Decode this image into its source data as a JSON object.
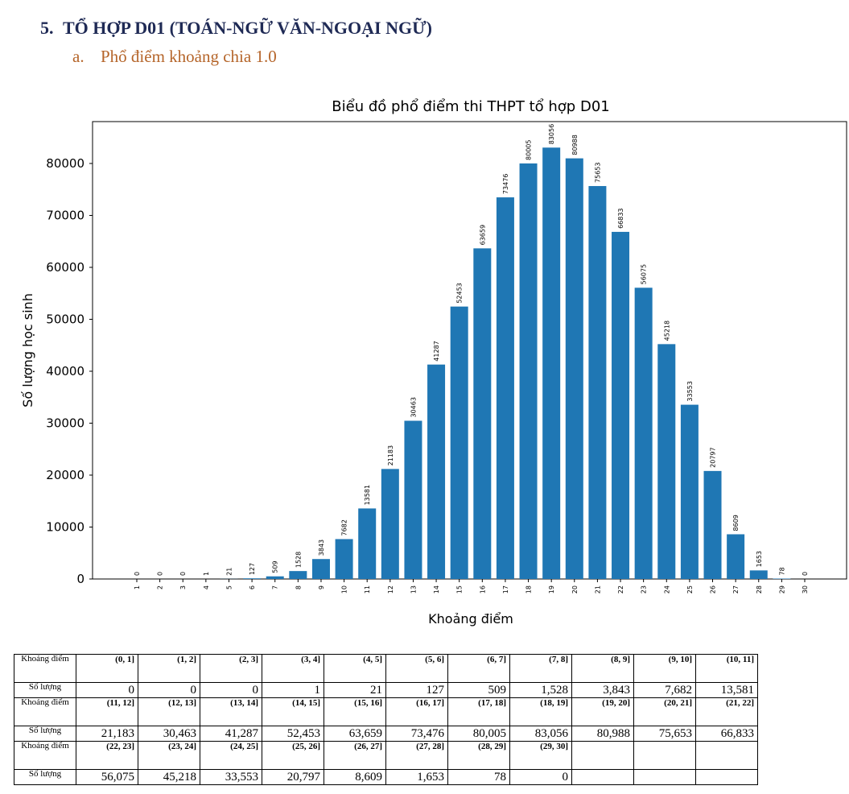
{
  "heading": {
    "number": "5.",
    "title": "TỔ HỢP D01 (TOÁN-NGỮ VĂN-NGOẠI NGỮ)"
  },
  "subheading": {
    "number": "a.",
    "title": "Phổ điểm khoảng chia 1.0"
  },
  "chart_data": {
    "type": "bar",
    "title": "Biểu đồ phổ điểm thi THPT tổ hợp D01",
    "xlabel": "Khoảng điểm",
    "ylabel": "Số lượng học sinh",
    "ylim": [
      0,
      88000
    ],
    "yticks": [
      "0",
      "10000",
      "20000",
      "30000",
      "40000",
      "50000",
      "60000",
      "70000",
      "80000"
    ],
    "categories": [
      "1",
      "2",
      "3",
      "4",
      "5",
      "6",
      "7",
      "8",
      "9",
      "10",
      "11",
      "12",
      "13",
      "14",
      "15",
      "16",
      "17",
      "18",
      "19",
      "20",
      "21",
      "22",
      "23",
      "24",
      "25",
      "26",
      "27",
      "28",
      "29",
      "30"
    ],
    "values": [
      0,
      0,
      0,
      1,
      21,
      127,
      509,
      1528,
      3843,
      7682,
      13581,
      21183,
      30463,
      41287,
      52453,
      63659,
      73476,
      80005,
      83056,
      80988,
      75653,
      66833,
      56075,
      45218,
      33553,
      20797,
      8609,
      1653,
      78,
      0
    ],
    "bar_color": "#1f77b4",
    "grid": false
  },
  "table": {
    "range_label": "Khoảng điểm",
    "count_label": "Số lượng",
    "blocks": [
      {
        "ranges": [
          "(0, 1]",
          "(1, 2]",
          "(2, 3]",
          "(3, 4]",
          "(4, 5]",
          "(5, 6]",
          "(6, 7]",
          "(7, 8]",
          "(8, 9]",
          "(9, 10]",
          "(10, 11]"
        ],
        "counts": [
          "0",
          "0",
          "0",
          "1",
          "21",
          "127",
          "509",
          "1,528",
          "3,843",
          "7,682",
          "13,581"
        ]
      },
      {
        "ranges": [
          "(11, 12]",
          "(12, 13]",
          "(13, 14]",
          "(14, 15]",
          "(15, 16]",
          "(16, 17]",
          "(17, 18]",
          "(18, 19]",
          "(19, 20]",
          "(20, 21]",
          "(21, 22]"
        ],
        "counts": [
          "21,183",
          "30,463",
          "41,287",
          "52,453",
          "63,659",
          "73,476",
          "80,005",
          "83,056",
          "80,988",
          "75,653",
          "66,833"
        ]
      },
      {
        "ranges": [
          "(22, 23]",
          "(23, 24]",
          "(24, 25]",
          "(25, 26]",
          "(26, 27]",
          "(27, 28]",
          "(28, 29]",
          "(29, 30]",
          "",
          "",
          ""
        ],
        "counts": [
          "56,075",
          "45,218",
          "33,553",
          "20,797",
          "8,609",
          "1,653",
          "78",
          "0",
          "",
          "",
          ""
        ]
      }
    ]
  }
}
